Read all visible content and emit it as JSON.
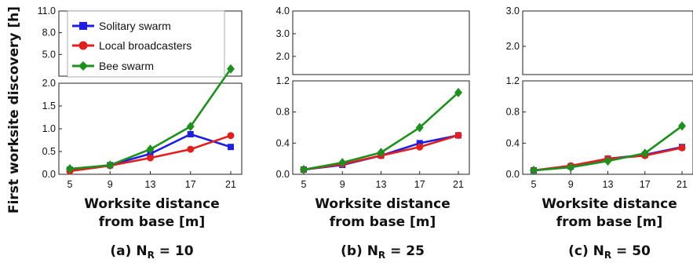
{
  "figure": {
    "ylabel": "First worksite discovery [h]"
  },
  "legend": [
    {
      "name": "Solitary swarm",
      "color": "#1f1fe0",
      "marker": "square"
    },
    {
      "name": "Local broadcasters",
      "color": "#e01f1f",
      "marker": "circle"
    },
    {
      "name": "Bee swarm",
      "color": "#1f8f1f",
      "marker": "diamond"
    }
  ],
  "chart_data": [
    {
      "type": "line",
      "caption_prefix": "(a) N",
      "caption_sub": "R",
      "caption_suffix": " = 10",
      "xlabel_line1": "Worksite distance",
      "xlabel_line2": "from base [m]",
      "x": [
        5,
        9,
        13,
        17,
        21
      ],
      "lower_ticks": [
        "0.0",
        "0.5",
        "1.0",
        "1.5",
        "2.0"
      ],
      "upper_ticks": [
        "2.0",
        "5.0",
        "8.0",
        "11.0"
      ],
      "lower_range": [
        0,
        2.0
      ],
      "upper_range": [
        2.0,
        11.0
      ],
      "series": [
        {
          "name": "Solitary swarm",
          "values": [
            0.1,
            0.2,
            0.45,
            0.88,
            0.6
          ]
        },
        {
          "name": "Local broadcasters",
          "values": [
            0.07,
            0.19,
            0.36,
            0.55,
            0.85
          ]
        },
        {
          "name": "Bee swarm",
          "values": [
            0.12,
            0.2,
            0.55,
            1.05,
            3.0
          ]
        }
      ]
    },
    {
      "type": "line",
      "caption_prefix": "(b) N",
      "caption_sub": "R",
      "caption_suffix": " = 25",
      "xlabel_line1": "Worksite distance",
      "xlabel_line2": "from base [m]",
      "x": [
        5,
        9,
        13,
        17,
        21
      ],
      "lower_ticks": [
        "0.0",
        "0.4",
        "0.8",
        "1.2"
      ],
      "upper_ticks": [
        "1.2",
        "2.0",
        "3.0",
        "4.0"
      ],
      "lower_range": [
        0,
        1.2
      ],
      "upper_range": [
        1.2,
        4.0
      ],
      "series": [
        {
          "name": "Solitary swarm",
          "values": [
            0.06,
            0.12,
            0.24,
            0.4,
            0.5
          ]
        },
        {
          "name": "Local broadcasters",
          "values": [
            0.06,
            0.13,
            0.24,
            0.35,
            0.5
          ]
        },
        {
          "name": "Bee swarm",
          "values": [
            0.06,
            0.15,
            0.28,
            0.6,
            1.05
          ]
        }
      ]
    },
    {
      "type": "line",
      "caption_prefix": "(c) N",
      "caption_sub": "R",
      "caption_suffix": " = 50",
      "xlabel_line1": "Worksite distance",
      "xlabel_line2": "from base [m]",
      "x": [
        5,
        9,
        13,
        17,
        21
      ],
      "lower_ticks": [
        "0.0",
        "0.4",
        "0.8",
        "1.2"
      ],
      "upper_ticks": [
        "1.2",
        "2.0",
        "3.0"
      ],
      "lower_range": [
        0,
        1.2
      ],
      "upper_range": [
        1.2,
        3.0
      ],
      "series": [
        {
          "name": "Solitary swarm",
          "values": [
            0.05,
            0.1,
            0.2,
            0.25,
            0.35
          ]
        },
        {
          "name": "Local broadcasters",
          "values": [
            0.05,
            0.11,
            0.2,
            0.24,
            0.34
          ]
        },
        {
          "name": "Bee swarm",
          "values": [
            0.05,
            0.09,
            0.17,
            0.27,
            0.62
          ]
        }
      ]
    }
  ]
}
